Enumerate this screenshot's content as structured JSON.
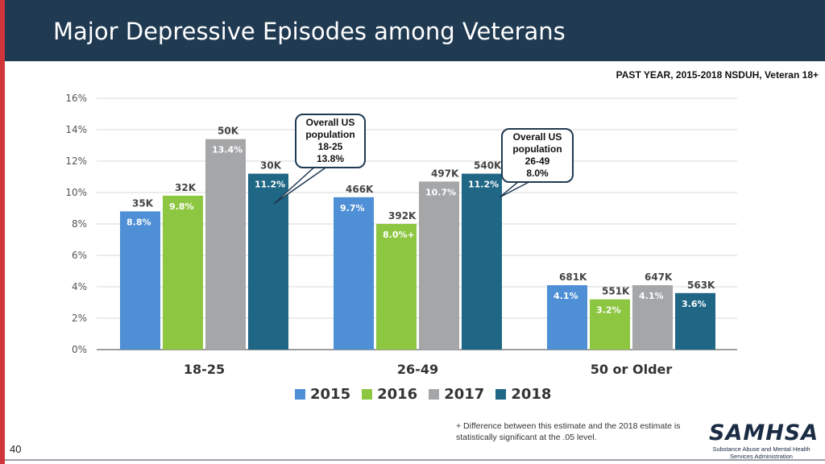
{
  "header": {
    "title": "Major Depressive Episodes among Veterans"
  },
  "subtitle": "PAST YEAR, 2015-2018 NSDUH, Veteran 18+",
  "colors": {
    "2015": "#4e8fd5",
    "2016": "#8dc641",
    "2017": "#a5a6a8",
    "2018": "#1f6784",
    "header": "#203a52",
    "accent": "#d0353a"
  },
  "chart_data": {
    "type": "bar",
    "title": "Major Depressive Episodes among Veterans",
    "categories": [
      "18-25",
      "26-49",
      "50 or Older"
    ],
    "series": [
      {
        "name": "2015",
        "values": [
          8.8,
          9.7,
          4.1
        ],
        "value_labels": [
          "8.8%",
          "9.7%",
          "4.1%"
        ],
        "counts": [
          "35K",
          "466K",
          "681K"
        ]
      },
      {
        "name": "2016",
        "values": [
          9.8,
          8.0,
          3.2
        ],
        "value_labels": [
          "9.8%",
          "8.0%+",
          "3.2%"
        ],
        "counts": [
          "32K",
          "392K",
          "551K"
        ]
      },
      {
        "name": "2017",
        "values": [
          13.4,
          10.7,
          4.1
        ],
        "value_labels": [
          "13.4%",
          "10.7%",
          "4.1%"
        ],
        "counts": [
          "50K",
          "497K",
          "647K"
        ]
      },
      {
        "name": "2018",
        "values": [
          11.2,
          11.2,
          3.6
        ],
        "value_labels": [
          "11.2%",
          "11.2%",
          "3.6%"
        ],
        "counts": [
          "30K",
          "540K",
          "563K"
        ]
      }
    ],
    "ylim": [
      0,
      16
    ],
    "yticks": [
      "0%",
      "2%",
      "4%",
      "6%",
      "8%",
      "10%",
      "12%",
      "14%",
      "16%"
    ],
    "xlabel": "",
    "ylabel": "",
    "grid": true,
    "legend": "bottom"
  },
  "callouts": [
    {
      "lines": [
        "Overall US",
        "population",
        "18-25",
        "13.8%"
      ]
    },
    {
      "lines": [
        "Overall US",
        "population",
        "26-49",
        "8.0%"
      ]
    }
  ],
  "footnote": "+ Difference between this estimate and the 2018 estimate is statistically significant at the .05 level.",
  "page_number": "40",
  "logo": {
    "name": "SAMHSA",
    "tagline": "Substance Abuse and Mental Health Services Administration"
  }
}
